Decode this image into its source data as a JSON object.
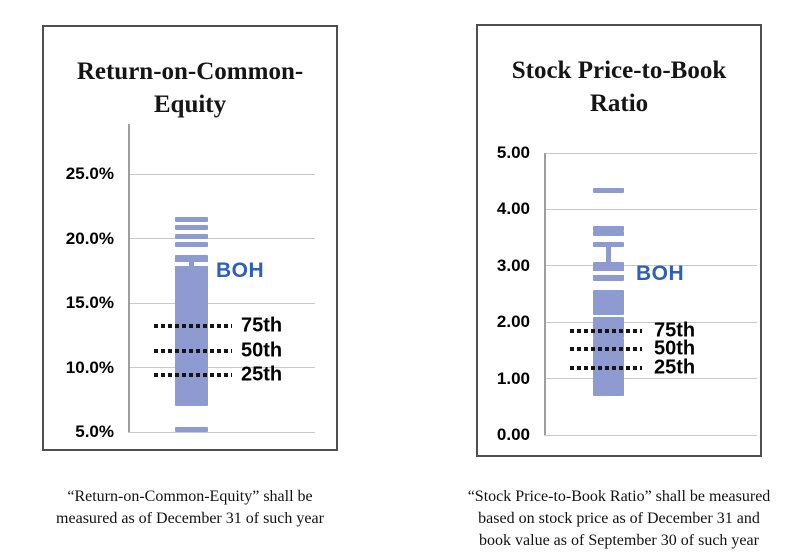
{
  "figure": {
    "background": "#ffffff",
    "marker_color": "#8E9BD1",
    "boh_color": "#2D5FBB",
    "gridline_color": "#c9c9c9"
  },
  "chart_data": [
    {
      "type": "scatter",
      "orientation": "vertical-strip",
      "title": "Return-on-Common-Equity",
      "title_lines": [
        "Return-on-Common-",
        "Equity"
      ],
      "unit": "%",
      "ylim": [
        5.0,
        29.0
      ],
      "grid": true,
      "yticks": [
        {
          "label": "25.0%",
          "value": 25.0
        },
        {
          "label": "20.0%",
          "value": 20.0
        },
        {
          "label": "15.0%",
          "value": 15.0
        },
        {
          "label": "10.0%",
          "value": 10.0
        },
        {
          "label": "5.0%",
          "value": 5.0
        }
      ],
      "values": [
        21.5,
        20.85,
        20.15,
        19.5,
        18.55,
        18.3,
        17.8,
        17.62,
        17.45,
        17.28,
        17.1,
        16.9,
        16.72,
        16.55,
        16.35,
        16.15,
        15.95,
        15.78,
        15.6,
        15.42,
        15.25,
        15.05,
        14.85,
        14.6,
        14.38,
        14.15,
        13.95,
        13.78,
        13.6,
        13.42,
        13.25,
        13.08,
        12.9,
        12.72,
        12.5,
        12.3,
        12.1,
        11.92,
        11.75,
        11.58,
        11.4,
        11.22,
        11.05,
        10.88,
        10.7,
        10.5,
        10.3,
        10.1,
        9.9,
        9.72,
        9.55,
        9.35,
        9.15,
        8.95,
        8.7,
        8.45,
        8.15,
        7.9,
        7.65,
        7.4,
        7.2,
        5.2
      ],
      "percentile_lines": [
        {
          "label": "75th",
          "value": 13.2
        },
        {
          "label": "50th",
          "value": 11.3
        },
        {
          "label": "25th",
          "value": 9.45
        }
      ],
      "boh": {
        "label": "BOH",
        "label_value": 17.5,
        "marker_value": 18.0
      },
      "notches": [
        18.05
      ],
      "stem": null,
      "caption_lines": [
        "“Return-on-Common-Equity” shall be",
        "measured as of December 31 of such year"
      ]
    },
    {
      "type": "scatter",
      "orientation": "vertical-strip",
      "title": "Stock Price-to-Book Ratio",
      "title_lines": [
        "Stock Price-to-Book",
        "Ratio"
      ],
      "unit": "x",
      "ylim": [
        0.0,
        5.0
      ],
      "grid": true,
      "yticks": [
        {
          "label": "5.00",
          "value": 5.0
        },
        {
          "label": "4.00",
          "value": 4.0
        },
        {
          "label": "3.00",
          "value": 3.0
        },
        {
          "label": "2.00",
          "value": 2.0
        },
        {
          "label": "1.00",
          "value": 1.0
        },
        {
          "label": "0.00",
          "value": 0.0
        }
      ],
      "values": [
        4.33,
        3.66,
        3.57,
        3.37,
        3.02,
        2.96,
        2.9,
        2.84,
        2.78,
        2.53,
        2.47,
        2.41,
        2.35,
        2.29,
        2.23,
        2.18,
        2.04,
        1.99,
        1.93,
        1.87,
        1.81,
        1.76,
        1.68,
        1.63,
        1.58,
        1.53,
        1.48,
        1.43,
        1.38,
        1.33,
        1.28,
        1.23,
        1.18,
        1.13,
        1.08,
        1.03,
        0.98,
        0.93,
        0.88,
        0.83,
        0.78,
        0.73
      ],
      "percentile_lines": [
        {
          "label": "75th",
          "value": 1.84
        },
        {
          "label": "50th",
          "value": 1.52
        },
        {
          "label": "25th",
          "value": 1.19
        }
      ],
      "boh": {
        "label": "BOH",
        "label_value": 2.85,
        "marker_value": null
      },
      "notches": [
        2.87
      ],
      "stem": {
        "from": 3.35,
        "to": 3.0
      },
      "caption_lines": [
        "“Stock Price-to-Book Ratio” shall be measured",
        "based on stock price as of December 31 and",
        "book value as of September 30 of such year"
      ]
    }
  ]
}
